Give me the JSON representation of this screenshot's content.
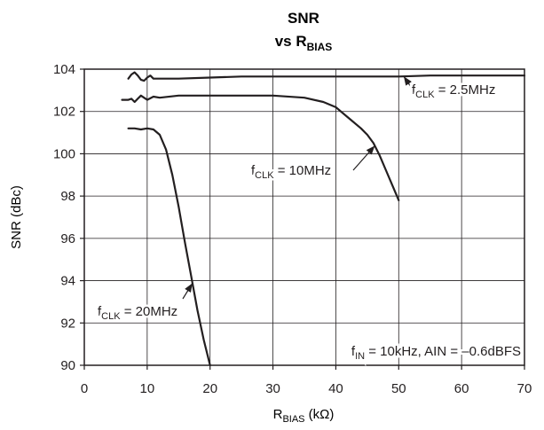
{
  "chart_data": {
    "type": "line",
    "title": "SNR",
    "subtitle": {
      "prefix": "vs R",
      "sub": "BIAS"
    },
    "xlabel": {
      "prefix": "R",
      "sub": "BIAS",
      "suffix": " (kΩ)"
    },
    "ylabel": "SNR (dBc)",
    "xlim": [
      0,
      70
    ],
    "ylim": [
      90,
      104
    ],
    "xticks": [
      "0",
      "10",
      "20",
      "30",
      "40",
      "50",
      "60",
      "70"
    ],
    "yticks": [
      "104",
      "102",
      "100",
      "98",
      "96",
      "94",
      "92",
      "90"
    ],
    "grid": true,
    "series": [
      {
        "name": "fCLK = 2.5MHz",
        "x": [
          7,
          7.5,
          8,
          8.5,
          9,
          9.5,
          10,
          10.5,
          11,
          12,
          15,
          20,
          25,
          30,
          35,
          40,
          45,
          50,
          55,
          60,
          65,
          70
        ],
        "y": [
          103.55,
          103.75,
          103.85,
          103.7,
          103.5,
          103.45,
          103.6,
          103.7,
          103.55,
          103.55,
          103.55,
          103.6,
          103.65,
          103.65,
          103.65,
          103.65,
          103.65,
          103.65,
          103.7,
          103.7,
          103.7,
          103.7
        ]
      },
      {
        "name": "fCLK = 10MHz",
        "x": [
          6,
          7,
          7.5,
          8,
          8.5,
          9,
          9.5,
          10,
          11,
          12,
          15,
          20,
          25,
          30,
          35,
          38,
          40,
          42,
          44,
          45,
          46,
          47,
          48,
          49,
          50
        ],
        "y": [
          102.55,
          102.55,
          102.6,
          102.45,
          102.6,
          102.75,
          102.65,
          102.55,
          102.7,
          102.65,
          102.75,
          102.75,
          102.75,
          102.75,
          102.65,
          102.45,
          102.2,
          101.7,
          101.2,
          100.9,
          100.5,
          99.9,
          99.2,
          98.5,
          97.8
        ]
      },
      {
        "name": "fCLK = 20MHz",
        "x": [
          7,
          8,
          9,
          10,
          11,
          12,
          13,
          14,
          15,
          16,
          17,
          18,
          19,
          20
        ],
        "y": [
          101.2,
          101.2,
          101.15,
          101.2,
          101.15,
          100.9,
          100.2,
          99,
          97.5,
          95.8,
          94.2,
          92.6,
          91.2,
          90
        ]
      }
    ],
    "annotations": [
      {
        "main": "f",
        "sub": "CLK",
        "rest": " = 2.5MHz",
        "series": 0
      },
      {
        "main": "f",
        "sub": "CLK",
        "rest": " = 10MHz",
        "series": 1
      },
      {
        "main": "f",
        "sub": "CLK",
        "rest": " = 20MHz",
        "series": 2
      },
      {
        "main": "f",
        "sub": "IN",
        "rest": " = 10kHz, AIN = –0.6dBFS"
      }
    ],
    "colors": {
      "line": "#231f20",
      "grid": "#231f20",
      "background": "#ffffff"
    }
  }
}
